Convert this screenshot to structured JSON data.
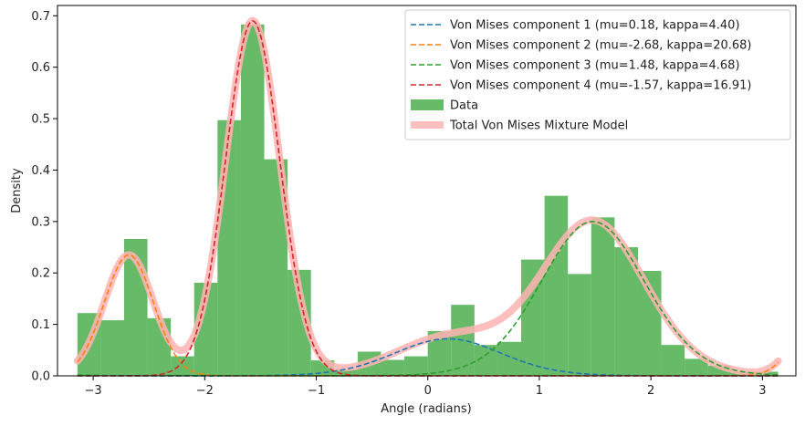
{
  "chart_data": {
    "type": "histogram+line",
    "xlabel": "Angle (radians)",
    "ylabel": "Density",
    "xlim": [
      -3.32,
      3.3
    ],
    "ylim": [
      0,
      0.72
    ],
    "x_ticks": [
      -3,
      -2,
      -1,
      0,
      1,
      2,
      3
    ],
    "x_tick_labels": [
      "−3",
      "−2",
      "−1",
      "0",
      "1",
      "2",
      "3"
    ],
    "y_ticks": [
      0.0,
      0.1,
      0.2,
      0.3,
      0.4,
      0.5,
      0.6,
      0.7
    ],
    "y_tick_labels": [
      "0.0",
      "0.1",
      "0.2",
      "0.3",
      "0.4",
      "0.5",
      "0.6",
      "0.7"
    ],
    "grid": false,
    "legend_position": "top-right",
    "histogram": {
      "name": "Data",
      "color": "#2ca02c",
      "bin_start": -3.1416,
      "bin_width": 0.2094,
      "values": [
        0.122,
        0.108,
        0.266,
        0.112,
        0.038,
        0.181,
        0.497,
        0.683,
        0.421,
        0.206,
        0.03,
        0.012,
        0.047,
        0.031,
        0.038,
        0.087,
        0.138,
        0.06,
        0.066,
        0.226,
        0.35,
        0.198,
        0.308,
        0.25,
        0.204,
        0.06,
        0.033,
        0.02,
        0.008,
        0.008
      ]
    },
    "components": [
      {
        "name": "Von Mises component 1 (mu=0.18, kappa=4.40)",
        "mu": 0.18,
        "kappa": 4.4,
        "peak": 0.072,
        "color": "#1f77b4"
      },
      {
        "name": "Von Mises component 2 (mu=-2.68, kappa=20.68)",
        "mu": -2.68,
        "kappa": 20.68,
        "peak": 0.235,
        "color": "#ff7f0e"
      },
      {
        "name": "Von Mises component 3 (mu=1.48, kappa=4.68)",
        "mu": 1.48,
        "kappa": 4.68,
        "peak": 0.3,
        "color": "#2ca02c"
      },
      {
        "name": "Von Mises component 4 (mu=-1.57, kappa=16.91)",
        "mu": -1.57,
        "kappa": 16.91,
        "peak": 0.69,
        "color": "#d62728"
      }
    ],
    "total": {
      "name": "Total Von Mises Mixture Model",
      "color": "#ffb3b3"
    },
    "legend_order": [
      "comp0",
      "comp1",
      "comp2",
      "comp3",
      "hist",
      "total"
    ]
  }
}
